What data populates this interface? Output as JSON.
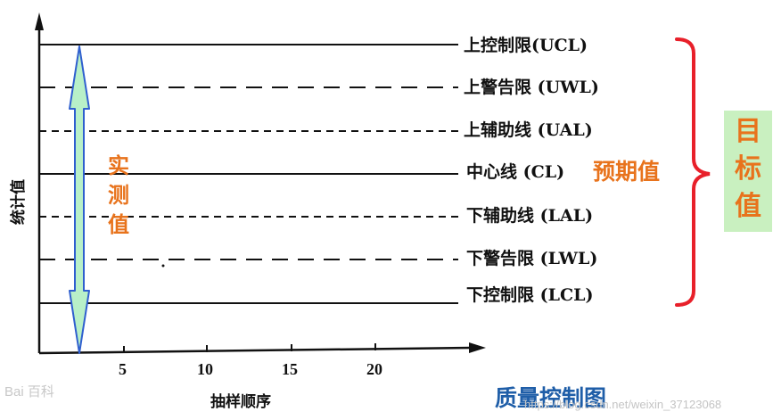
{
  "diagram": {
    "y_axis_label": "统计值",
    "x_axis_label": "抽样顺序",
    "x_ticks": [
      "5",
      "10",
      "15",
      "20"
    ],
    "measured_label": "实\n测\n值",
    "expected_label": "预期值",
    "target_label": "目\n标\n值",
    "title": "质量控制图",
    "watermark_left": "Bai 百科",
    "watermark_right": "https://blog.csdn.net/weixin_37123068",
    "lines": [
      {
        "label": "上控制限(UCL)",
        "style": "solid"
      },
      {
        "label": "上警告限 (UWL)",
        "style": "dashed"
      },
      {
        "label": "上辅助线 (UAL)",
        "style": "dashed"
      },
      {
        "label": "中心线 (CL)",
        "style": "solid"
      },
      {
        "label": "下辅助线 (LAL)",
        "style": "dashed"
      },
      {
        "label": "下警告限 (LWL)",
        "style": "dashed"
      },
      {
        "label": "下控制限 (LCL)",
        "style": "solid"
      }
    ],
    "colors": {
      "arrow_fill": "#b8f0c8",
      "arrow_stroke": "#2f5fcf",
      "bracket": "#e8202a",
      "orange_text": "#e8731c",
      "target_bg": "#c9f0c0",
      "title": "#1f5ea8"
    }
  }
}
